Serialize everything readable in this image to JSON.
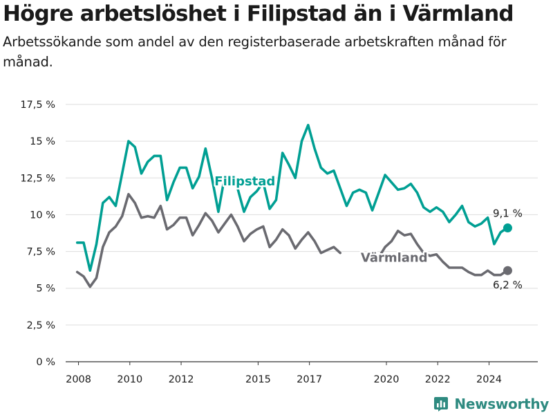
{
  "header": {
    "title": "Högre arbetslöshet i Filipstad än i Värmland",
    "subtitle": "Arbetssökande som andel av den registerbaserade arbetskraften månad för månad."
  },
  "brand": {
    "name": "Newsworthy",
    "icon": "newsworthy-logo-icon",
    "color": "#2e8a80"
  },
  "chart_data": {
    "type": "line",
    "title": "Högre arbetslöshet i Filipstad än i Värmland",
    "subtitle": "Arbetssökande som andel av den registerbaserade arbetskraften månad för månad.",
    "xlabel": "",
    "ylabel": "",
    "x_ticks": [
      2008,
      2010,
      2012,
      2015,
      2017,
      2020,
      2022,
      2024
    ],
    "y_ticks": [
      0,
      2.5,
      5,
      7.5,
      10,
      12.5,
      15,
      17.5
    ],
    "y_tick_labels": [
      "0 %",
      "2,5 %",
      "5 %",
      "7,5 %",
      "10 %",
      "12,5 %",
      "15 %",
      "17,5 %"
    ],
    "xlim": [
      2007.5,
      2025.9
    ],
    "ylim": [
      0,
      17.5
    ],
    "grid": "horizontal",
    "legend": "direct labels",
    "series": [
      {
        "name": "Filipstad",
        "color": "#009f93",
        "end_label": "9,1 %",
        "end_value": 9.1,
        "points": [
          [
            2007.95,
            8.1
          ],
          [
            2008.2,
            8.1
          ],
          [
            2008.45,
            6.2
          ],
          [
            2008.7,
            8.0
          ],
          [
            2008.95,
            10.8
          ],
          [
            2009.2,
            11.2
          ],
          [
            2009.45,
            10.6
          ],
          [
            2009.7,
            12.8
          ],
          [
            2009.95,
            15.0
          ],
          [
            2010.2,
            14.6
          ],
          [
            2010.45,
            12.8
          ],
          [
            2010.7,
            13.6
          ],
          [
            2010.95,
            14.0
          ],
          [
            2011.2,
            14.0
          ],
          [
            2011.45,
            11.0
          ],
          [
            2011.7,
            12.2
          ],
          [
            2011.95,
            13.2
          ],
          [
            2012.2,
            13.2
          ],
          [
            2012.45,
            11.8
          ],
          [
            2012.7,
            12.6
          ],
          [
            2012.95,
            14.5
          ],
          [
            2013.2,
            12.5
          ],
          [
            2013.45,
            10.2
          ],
          [
            2013.7,
            12.6
          ],
          [
            2013.95,
            12.6
          ],
          [
            2014.2,
            11.8
          ],
          [
            2014.45,
            10.2
          ],
          [
            2014.7,
            11.2
          ],
          [
            2014.95,
            11.6
          ],
          [
            2015.2,
            12.2
          ],
          [
            2015.45,
            10.4
          ],
          [
            2015.7,
            11.0
          ],
          [
            2015.95,
            14.2
          ],
          [
            2016.2,
            13.4
          ],
          [
            2016.45,
            12.5
          ],
          [
            2016.7,
            15.0
          ],
          [
            2016.95,
            16.1
          ],
          [
            2017.2,
            14.5
          ],
          [
            2017.45,
            13.2
          ],
          [
            2017.7,
            12.8
          ],
          [
            2017.95,
            13.0
          ],
          [
            2018.2,
            11.8
          ],
          [
            2018.45,
            10.6
          ],
          [
            2018.7,
            11.5
          ],
          [
            2018.95,
            11.7
          ],
          [
            2019.2,
            11.5
          ],
          [
            2019.45,
            10.3
          ],
          [
            2019.7,
            11.5
          ],
          [
            2019.95,
            12.7
          ],
          [
            2020.2,
            12.2
          ],
          [
            2020.45,
            11.7
          ],
          [
            2020.7,
            11.8
          ],
          [
            2020.95,
            12.1
          ],
          [
            2021.2,
            11.5
          ],
          [
            2021.45,
            10.5
          ],
          [
            2021.7,
            10.2
          ],
          [
            2021.95,
            10.5
          ],
          [
            2022.2,
            10.2
          ],
          [
            2022.45,
            9.5
          ],
          [
            2022.7,
            10.0
          ],
          [
            2022.95,
            10.6
          ],
          [
            2023.2,
            9.5
          ],
          [
            2023.45,
            9.2
          ],
          [
            2023.7,
            9.4
          ],
          [
            2023.95,
            9.8
          ],
          [
            2024.2,
            8.0
          ],
          [
            2024.45,
            8.8
          ],
          [
            2024.7,
            9.1
          ]
        ]
      },
      {
        "name": "Värmland",
        "color": "#6a6a70",
        "end_label": "6,2 %",
        "end_value": 6.2,
        "points": [
          [
            2007.95,
            6.1
          ],
          [
            2008.2,
            5.8
          ],
          [
            2008.45,
            5.1
          ],
          [
            2008.7,
            5.7
          ],
          [
            2008.95,
            7.8
          ],
          [
            2009.2,
            8.8
          ],
          [
            2009.45,
            9.2
          ],
          [
            2009.7,
            9.9
          ],
          [
            2009.95,
            11.4
          ],
          [
            2010.2,
            10.8
          ],
          [
            2010.45,
            9.8
          ],
          [
            2010.7,
            9.9
          ],
          [
            2010.95,
            9.8
          ],
          [
            2011.2,
            10.6
          ],
          [
            2011.45,
            9.0
          ],
          [
            2011.7,
            9.3
          ],
          [
            2011.95,
            9.8
          ],
          [
            2012.2,
            9.8
          ],
          [
            2012.45,
            8.6
          ],
          [
            2012.7,
            9.3
          ],
          [
            2012.95,
            10.1
          ],
          [
            2013.2,
            9.6
          ],
          [
            2013.45,
            8.8
          ],
          [
            2013.7,
            9.4
          ],
          [
            2013.95,
            10.0
          ],
          [
            2014.2,
            9.2
          ],
          [
            2014.45,
            8.2
          ],
          [
            2014.7,
            8.7
          ],
          [
            2014.95,
            9.0
          ],
          [
            2015.2,
            9.2
          ],
          [
            2015.45,
            7.8
          ],
          [
            2015.7,
            8.3
          ],
          [
            2015.95,
            9.0
          ],
          [
            2016.2,
            8.6
          ],
          [
            2016.45,
            7.7
          ],
          [
            2016.7,
            8.3
          ],
          [
            2016.95,
            8.8
          ],
          [
            2017.2,
            8.2
          ],
          [
            2017.45,
            7.4
          ],
          [
            2017.7,
            7.6
          ],
          [
            2017.95,
            7.8
          ],
          [
            2018.2,
            7.4
          ],
          [
            null,
            null
          ],
          [
            2019.7,
            7.1
          ],
          [
            2019.95,
            7.8
          ],
          [
            2020.2,
            8.2
          ],
          [
            2020.45,
            8.9
          ],
          [
            2020.7,
            8.6
          ],
          [
            2020.95,
            8.7
          ],
          [
            2021.2,
            8.0
          ],
          [
            2021.45,
            7.4
          ],
          [
            2021.7,
            7.2
          ],
          [
            2021.95,
            7.3
          ],
          [
            2022.2,
            6.8
          ],
          [
            2022.45,
            6.4
          ],
          [
            2022.7,
            6.4
          ],
          [
            2022.95,
            6.4
          ],
          [
            2023.2,
            6.1
          ],
          [
            2023.45,
            5.9
          ],
          [
            2023.7,
            5.9
          ],
          [
            2023.95,
            6.2
          ],
          [
            2024.2,
            5.9
          ],
          [
            2024.45,
            5.9
          ],
          [
            2024.7,
            6.2
          ]
        ]
      }
    ],
    "series_labels": [
      {
        "name": "Filipstad",
        "at": [
          2013.3,
          12.0
        ]
      },
      {
        "name": "Värmland",
        "at": [
          2019.0,
          6.8
        ]
      }
    ]
  }
}
